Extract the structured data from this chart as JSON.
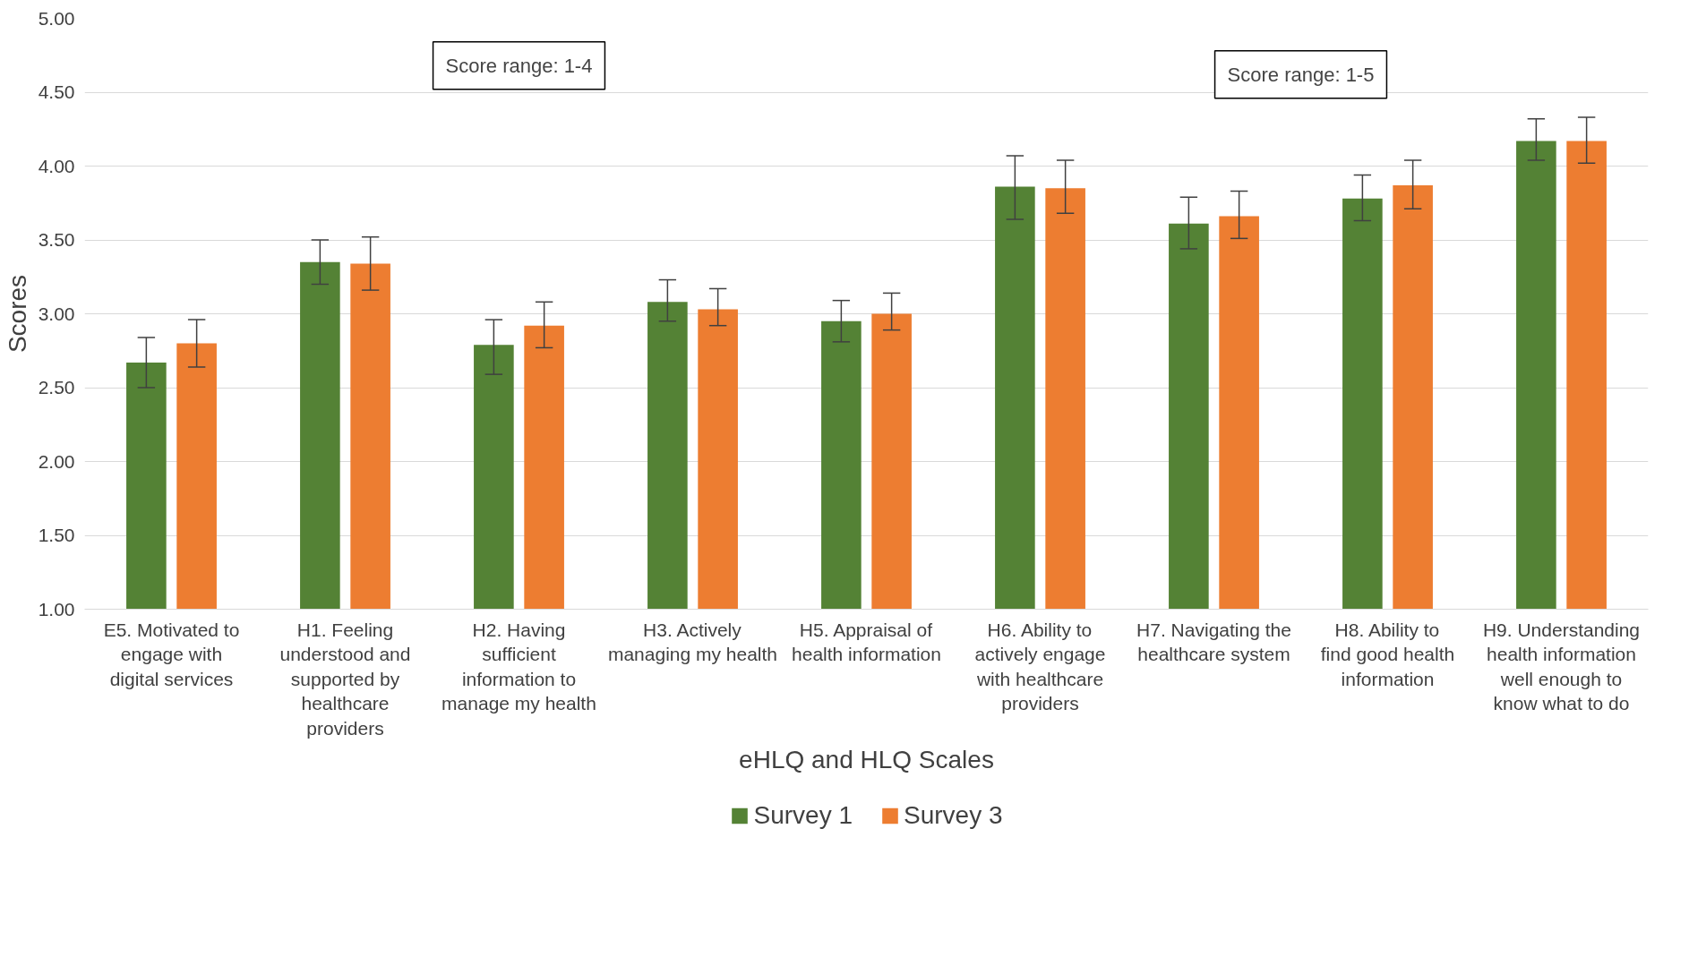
{
  "chart_data": {
    "type": "bar",
    "xlabel": "eHLQ and HLQ Scales",
    "ylabel": "Scores",
    "categories": [
      "E5. Motivated to engage with digital services",
      "H1. Feeling understood and supported by healthcare providers",
      "H2. Having sufficient information to manage my health",
      "H3. Actively managing my health",
      "H5. Appraisal of health information",
      "H6. Ability to actively engage with healthcare providers",
      "H7. Navigating the healthcare system",
      "H8. Ability to find good health information",
      "H9. Understanding health information well enough to know what to do"
    ],
    "series": [
      {
        "name": "Survey 1",
        "color": "#548235",
        "values": [
          2.67,
          3.35,
          2.79,
          3.08,
          2.95,
          3.86,
          3.61,
          3.78,
          4.17
        ],
        "errors": [
          [
            2.5,
            2.84
          ],
          [
            3.2,
            3.5
          ],
          [
            2.59,
            2.96
          ],
          [
            2.95,
            3.23
          ],
          [
            2.81,
            3.09
          ],
          [
            3.64,
            4.07
          ],
          [
            3.44,
            3.79
          ],
          [
            3.63,
            3.94
          ],
          [
            4.04,
            4.32
          ]
        ]
      },
      {
        "name": "Survey 3",
        "color": "#ed7d31",
        "values": [
          2.8,
          3.34,
          2.92,
          3.03,
          3.0,
          3.85,
          3.66,
          3.87,
          4.17
        ],
        "errors": [
          [
            2.64,
            2.96
          ],
          [
            3.16,
            3.52
          ],
          [
            2.77,
            3.08
          ],
          [
            2.92,
            3.17
          ],
          [
            2.89,
            3.14
          ],
          [
            3.68,
            4.04
          ],
          [
            3.51,
            3.83
          ],
          [
            3.71,
            4.04
          ],
          [
            4.02,
            4.33
          ]
        ]
      }
    ],
    "ylim": [
      1,
      5
    ],
    "yticks": [
      {
        "value": 1,
        "label": "1.00"
      },
      {
        "value": 1.5,
        "label": "1.50"
      },
      {
        "value": 2,
        "label": "2.00"
      },
      {
        "value": 2.5,
        "label": "2.50"
      },
      {
        "value": 3,
        "label": "3.00"
      },
      {
        "value": 3.5,
        "label": "3.50"
      },
      {
        "value": 4,
        "label": "4.00"
      },
      {
        "value": 4.5,
        "label": "4.50"
      },
      {
        "value": 5,
        "label": "5.00"
      }
    ],
    "grid": "y",
    "legend": "bottom",
    "annotations": [
      "Score range: 1-4",
      "Score range: 1-5"
    ]
  }
}
